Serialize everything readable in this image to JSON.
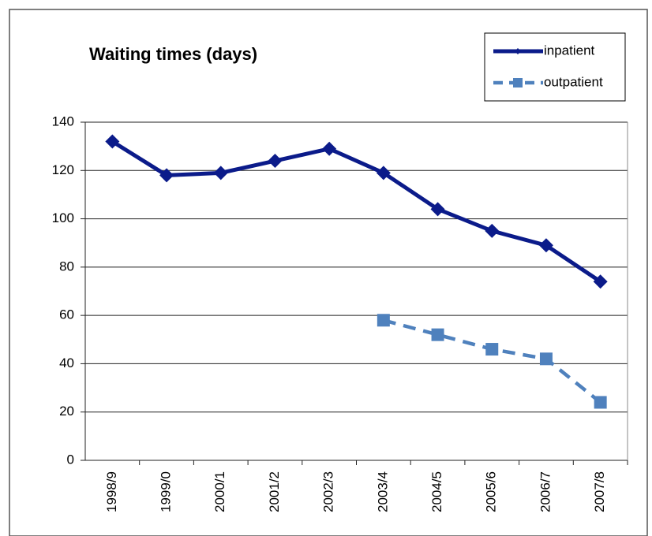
{
  "chart_data": {
    "type": "line",
    "title": "Waiting times (days)",
    "categories": [
      "1998/9",
      "1999/0",
      "2000/1",
      "2001/2",
      "2002/3",
      "2003/4",
      "2004/5",
      "2005/6",
      "2006/7",
      "2007/8"
    ],
    "series": [
      {
        "name": "inpatient",
        "color": "#0b1b8a",
        "values": [
          132,
          118,
          119,
          124,
          129,
          119,
          104,
          95,
          89,
          74
        ]
      },
      {
        "name": "outpatient",
        "color": "#4f81bd",
        "values": [
          null,
          null,
          null,
          null,
          null,
          58,
          52,
          46,
          42,
          24
        ]
      }
    ],
    "ylim": [
      0,
      140
    ],
    "yticks": [
      0,
      20,
      40,
      60,
      80,
      100,
      120,
      140
    ],
    "grid": true,
    "legend": "top-right"
  }
}
